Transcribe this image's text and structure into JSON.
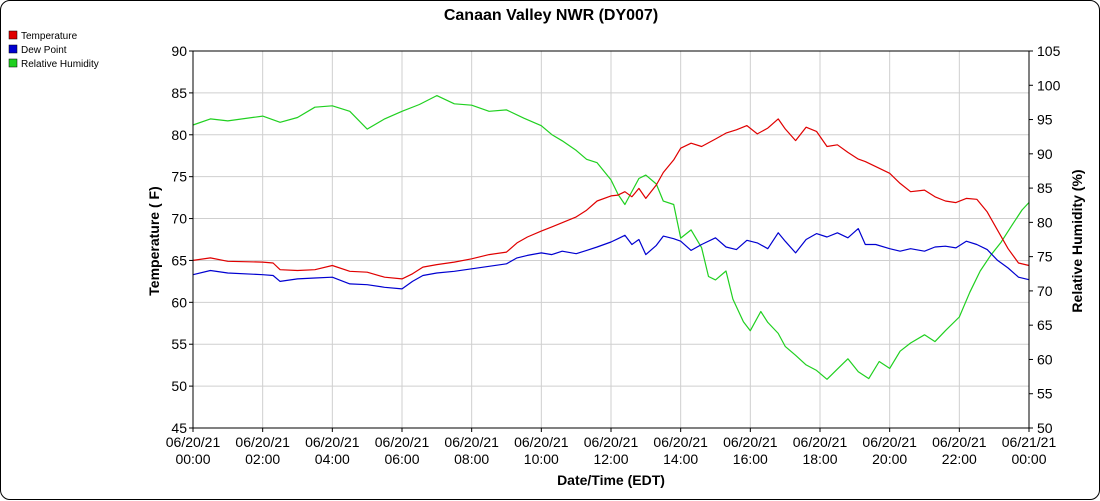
{
  "chart_data": {
    "type": "line",
    "title": "Canaan Valley NWR (DY007)",
    "xlabel": "Date/Time (EDT)",
    "ylabel": "Temperature ( F)",
    "y2label": "Relative Humidity (%)",
    "x_ticks": [
      {
        "h": 0,
        "date": "06/20/21",
        "time": "00:00"
      },
      {
        "h": 2,
        "date": "06/20/21",
        "time": "02:00"
      },
      {
        "h": 4,
        "date": "06/20/21",
        "time": "04:00"
      },
      {
        "h": 6,
        "date": "06/20/21",
        "time": "06:00"
      },
      {
        "h": 8,
        "date": "06/20/21",
        "time": "08:00"
      },
      {
        "h": 10,
        "date": "06/20/21",
        "time": "10:00"
      },
      {
        "h": 12,
        "date": "06/20/21",
        "time": "12:00"
      },
      {
        "h": 14,
        "date": "06/20/21",
        "time": "14:00"
      },
      {
        "h": 16,
        "date": "06/20/21",
        "time": "16:00"
      },
      {
        "h": 18,
        "date": "06/20/21",
        "time": "18:00"
      },
      {
        "h": 20,
        "date": "06/20/21",
        "time": "20:00"
      },
      {
        "h": 22,
        "date": "06/20/21",
        "time": "22:00"
      },
      {
        "h": 24,
        "date": "06/21/21",
        "time": "00:00"
      }
    ],
    "xlim": [
      0,
      24
    ],
    "ylim": [
      45,
      90
    ],
    "y_ticks": [
      45,
      50,
      55,
      60,
      65,
      70,
      75,
      80,
      85,
      90
    ],
    "y2lim": [
      50,
      105
    ],
    "y2_ticks": [
      50,
      55,
      60,
      65,
      70,
      75,
      80,
      85,
      90,
      95,
      100,
      105
    ],
    "grid": true,
    "legend_position": "top-left",
    "series": [
      {
        "name": "Temperature",
        "axis": "left",
        "color": "#e00000",
        "points": [
          [
            0,
            65
          ],
          [
            0.5,
            65.3
          ],
          [
            1,
            64.9
          ],
          [
            2,
            64.8
          ],
          [
            2.3,
            64.7
          ],
          [
            2.5,
            63.9
          ],
          [
            3,
            63.8
          ],
          [
            3.5,
            63.9
          ],
          [
            4,
            64.4
          ],
          [
            4.5,
            63.7
          ],
          [
            5,
            63.6
          ],
          [
            5.5,
            63
          ],
          [
            6,
            62.8
          ],
          [
            6.3,
            63.4
          ],
          [
            6.6,
            64.2
          ],
          [
            7,
            64.5
          ],
          [
            7.5,
            64.8
          ],
          [
            8,
            65.2
          ],
          [
            8.5,
            65.7
          ],
          [
            9,
            66
          ],
          [
            9.3,
            67.1
          ],
          [
            9.6,
            67.8
          ],
          [
            10,
            68.5
          ],
          [
            10.3,
            69
          ],
          [
            10.6,
            69.5
          ],
          [
            11,
            70.2
          ],
          [
            11.3,
            71
          ],
          [
            11.6,
            72.1
          ],
          [
            12,
            72.7
          ],
          [
            12.2,
            72.8
          ],
          [
            12.4,
            73.2
          ],
          [
            12.6,
            72.6
          ],
          [
            12.8,
            73.6
          ],
          [
            13,
            72.4
          ],
          [
            13.3,
            74
          ],
          [
            13.5,
            75.5
          ],
          [
            13.8,
            77
          ],
          [
            14,
            78.4
          ],
          [
            14.3,
            79
          ],
          [
            14.6,
            78.6
          ],
          [
            15,
            79.5
          ],
          [
            15.3,
            80.2
          ],
          [
            15.6,
            80.6
          ],
          [
            15.9,
            81.1
          ],
          [
            16.2,
            80.1
          ],
          [
            16.5,
            80.8
          ],
          [
            16.8,
            81.9
          ],
          [
            17,
            80.7
          ],
          [
            17.3,
            79.3
          ],
          [
            17.6,
            80.9
          ],
          [
            17.9,
            80.4
          ],
          [
            18.2,
            78.6
          ],
          [
            18.5,
            78.8
          ],
          [
            18.8,
            77.9
          ],
          [
            19.1,
            77.1
          ],
          [
            19.3,
            76.8
          ],
          [
            19.6,
            76.2
          ],
          [
            20,
            75.4
          ],
          [
            20.3,
            74.2
          ],
          [
            20.6,
            73.2
          ],
          [
            21,
            73.4
          ],
          [
            21.3,
            72.6
          ],
          [
            21.6,
            72.1
          ],
          [
            21.9,
            71.9
          ],
          [
            22.2,
            72.4
          ],
          [
            22.5,
            72.3
          ],
          [
            22.8,
            70.8
          ],
          [
            23.1,
            68.6
          ],
          [
            23.4,
            66.4
          ],
          [
            23.7,
            64.7
          ],
          [
            24,
            64.4
          ]
        ]
      },
      {
        "name": "Dew Point",
        "axis": "left",
        "color": "#0000d0",
        "points": [
          [
            0,
            63.3
          ],
          [
            0.5,
            63.8
          ],
          [
            1,
            63.5
          ],
          [
            2,
            63.3
          ],
          [
            2.3,
            63.2
          ],
          [
            2.5,
            62.5
          ],
          [
            3,
            62.8
          ],
          [
            3.5,
            62.9
          ],
          [
            4,
            63
          ],
          [
            4.5,
            62.2
          ],
          [
            5,
            62.1
          ],
          [
            5.5,
            61.8
          ],
          [
            6,
            61.6
          ],
          [
            6.3,
            62.5
          ],
          [
            6.6,
            63.2
          ],
          [
            7,
            63.5
          ],
          [
            7.5,
            63.7
          ],
          [
            8,
            64
          ],
          [
            8.5,
            64.3
          ],
          [
            9,
            64.6
          ],
          [
            9.3,
            65.3
          ],
          [
            9.6,
            65.6
          ],
          [
            10,
            65.9
          ],
          [
            10.3,
            65.7
          ],
          [
            10.6,
            66.1
          ],
          [
            11,
            65.8
          ],
          [
            11.3,
            66.2
          ],
          [
            11.6,
            66.6
          ],
          [
            12,
            67.2
          ],
          [
            12.2,
            67.6
          ],
          [
            12.4,
            68
          ],
          [
            12.6,
            66.9
          ],
          [
            12.8,
            67.5
          ],
          [
            13,
            65.7
          ],
          [
            13.3,
            66.8
          ],
          [
            13.5,
            67.9
          ],
          [
            13.8,
            67.6
          ],
          [
            14,
            67.3
          ],
          [
            14.3,
            66.2
          ],
          [
            14.6,
            66.9
          ],
          [
            15,
            67.7
          ],
          [
            15.3,
            66.6
          ],
          [
            15.6,
            66.3
          ],
          [
            15.9,
            67.4
          ],
          [
            16.2,
            67.1
          ],
          [
            16.5,
            66.4
          ],
          [
            16.8,
            68.3
          ],
          [
            17,
            67.3
          ],
          [
            17.3,
            65.9
          ],
          [
            17.6,
            67.5
          ],
          [
            17.9,
            68.2
          ],
          [
            18.2,
            67.8
          ],
          [
            18.5,
            68.3
          ],
          [
            18.8,
            67.7
          ],
          [
            19.1,
            68.8
          ],
          [
            19.3,
            66.9
          ],
          [
            19.6,
            66.9
          ],
          [
            20,
            66.4
          ],
          [
            20.3,
            66.1
          ],
          [
            20.6,
            66.4
          ],
          [
            21,
            66.1
          ],
          [
            21.3,
            66.6
          ],
          [
            21.6,
            66.7
          ],
          [
            21.9,
            66.5
          ],
          [
            22.2,
            67.3
          ],
          [
            22.5,
            66.9
          ],
          [
            22.8,
            66.3
          ],
          [
            23.1,
            65
          ],
          [
            23.4,
            64.1
          ],
          [
            23.7,
            63
          ],
          [
            24,
            62.7
          ]
        ]
      },
      {
        "name": "Relative Humidity",
        "axis": "right",
        "color": "#20d020",
        "points": [
          [
            0,
            94.2
          ],
          [
            0.5,
            95.1
          ],
          [
            1,
            94.8
          ],
          [
            2,
            95.5
          ],
          [
            2.5,
            94.6
          ],
          [
            3,
            95.3
          ],
          [
            3.5,
            96.8
          ],
          [
            4,
            97
          ],
          [
            4.5,
            96.2
          ],
          [
            5,
            93.6
          ],
          [
            5.5,
            95.1
          ],
          [
            6,
            96.2
          ],
          [
            6.5,
            97.2
          ],
          [
            7,
            98.5
          ],
          [
            7.5,
            97.3
          ],
          [
            8,
            97.1
          ],
          [
            8.5,
            96.2
          ],
          [
            9,
            96.4
          ],
          [
            9.5,
            95.2
          ],
          [
            10,
            94.1
          ],
          [
            10.3,
            92.8
          ],
          [
            10.6,
            91.9
          ],
          [
            11,
            90.5
          ],
          [
            11.3,
            89.2
          ],
          [
            11.6,
            88.7
          ],
          [
            12,
            86.2
          ],
          [
            12.2,
            84.1
          ],
          [
            12.4,
            82.6
          ],
          [
            12.6,
            84.5
          ],
          [
            12.8,
            86.4
          ],
          [
            13,
            86.9
          ],
          [
            13.3,
            85.6
          ],
          [
            13.5,
            83.1
          ],
          [
            13.8,
            82.6
          ],
          [
            14,
            77.7
          ],
          [
            14.3,
            78.9
          ],
          [
            14.6,
            76.3
          ],
          [
            14.8,
            72.1
          ],
          [
            15,
            71.6
          ],
          [
            15.3,
            72.9
          ],
          [
            15.5,
            68.8
          ],
          [
            15.8,
            65.5
          ],
          [
            16,
            64.2
          ],
          [
            16.3,
            67
          ],
          [
            16.5,
            65.4
          ],
          [
            16.8,
            63.8
          ],
          [
            17,
            61.9
          ],
          [
            17.3,
            60.6
          ],
          [
            17.6,
            59.2
          ],
          [
            17.9,
            58.4
          ],
          [
            18.2,
            57.1
          ],
          [
            18.5,
            58.6
          ],
          [
            18.8,
            60.1
          ],
          [
            19.1,
            58.2
          ],
          [
            19.4,
            57.2
          ],
          [
            19.7,
            59.7
          ],
          [
            20,
            58.7
          ],
          [
            20.3,
            61.2
          ],
          [
            20.6,
            62.4
          ],
          [
            21,
            63.6
          ],
          [
            21.3,
            62.6
          ],
          [
            21.6,
            64.2
          ],
          [
            22,
            66.2
          ],
          [
            22.3,
            69.8
          ],
          [
            22.6,
            72.9
          ],
          [
            22.9,
            75.2
          ],
          [
            23.2,
            77.1
          ],
          [
            23.5,
            79.5
          ],
          [
            23.8,
            81.8
          ],
          [
            24,
            82.9
          ]
        ]
      }
    ]
  }
}
